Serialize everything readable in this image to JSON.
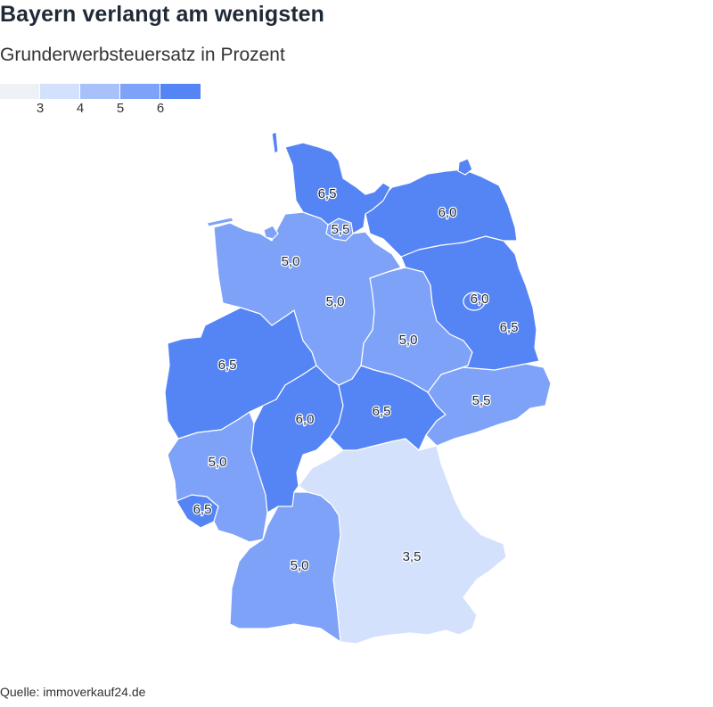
{
  "title": "Bayern verlangt am wenigsten",
  "subtitle": "Grunderwerbsteuersatz in Prozent",
  "legend": {
    "colors": [
      "#eef1f6",
      "#d4e1fc",
      "#a9c1fb",
      "#7ea2f8",
      "#5584f5"
    ],
    "ticks": [
      "3",
      "4",
      "5",
      "6"
    ]
  },
  "source": "Quelle: immoverkauf24.de",
  "chart_data": {
    "type": "choropleth",
    "regions": [
      {
        "name": "Schleswig-Holstein",
        "value": 6.5,
        "label": "6,5",
        "color": "#5584f5"
      },
      {
        "name": "Hamburg",
        "value": 5.5,
        "label": "5,5",
        "color": "#7ea2f8"
      },
      {
        "name": "Mecklenburg-Vorpommern",
        "value": 6.0,
        "label": "6,0",
        "color": "#5584f5"
      },
      {
        "name": "Bremen",
        "value": 5.0,
        "label": "5,0",
        "color": "#7ea2f8"
      },
      {
        "name": "Niedersachsen",
        "value": 5.0,
        "label": "5,0",
        "color": "#7ea2f8"
      },
      {
        "name": "Berlin",
        "value": 6.0,
        "label": "6,0",
        "color": "#5584f5"
      },
      {
        "name": "Brandenburg",
        "value": 6.5,
        "label": "6,5",
        "color": "#5584f5"
      },
      {
        "name": "Sachsen-Anhalt",
        "value": 5.0,
        "label": "5,0",
        "color": "#7ea2f8"
      },
      {
        "name": "Nordrhein-Westfalen",
        "value": 6.5,
        "label": "6,5",
        "color": "#5584f5"
      },
      {
        "name": "Hessen",
        "value": 6.0,
        "label": "6,0",
        "color": "#5584f5"
      },
      {
        "name": "Thüringen",
        "value": 6.5,
        "label": "6,5",
        "color": "#5584f5"
      },
      {
        "name": "Sachsen",
        "value": 5.5,
        "label": "5,5",
        "color": "#7ea2f8"
      },
      {
        "name": "Rheinland-Pfalz",
        "value": 5.0,
        "label": "5,0",
        "color": "#7ea2f8"
      },
      {
        "name": "Saarland",
        "value": 6.5,
        "label": "6,5",
        "color": "#5584f5"
      },
      {
        "name": "Baden-Württemberg",
        "value": 5.0,
        "label": "5,0",
        "color": "#7ea2f8"
      },
      {
        "name": "Bayern",
        "value": 3.5,
        "label": "3,5",
        "color": "#d4e1fc"
      }
    ]
  }
}
